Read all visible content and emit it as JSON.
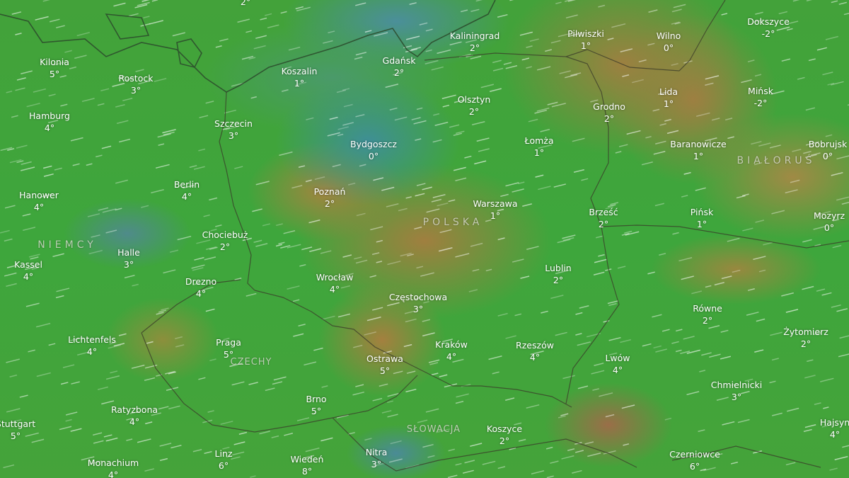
{
  "map": {
    "type": "weather-temperature-wind",
    "colors": {
      "cold": "#3f8f96",
      "mild": "#3fa83a",
      "warm": "#a3843f"
    }
  },
  "edge_temps": [
    "2°"
  ],
  "countries": [
    "NIEMCY",
    "POLSKA",
    "CZECHY",
    "SŁOWACJA",
    "BIAŁORUŚ"
  ],
  "cities": [
    {
      "name": "Kilonia",
      "temp": "5°"
    },
    {
      "name": "Rostock",
      "temp": "3°"
    },
    {
      "name": "Hamburg",
      "temp": "4°"
    },
    {
      "name": "Koszalin",
      "temp": "1°"
    },
    {
      "name": "Gdańsk",
      "temp": "2°"
    },
    {
      "name": "Kaliningrad",
      "temp": "2°"
    },
    {
      "name": "Pilwiszki",
      "temp": "1°"
    },
    {
      "name": "Wilno",
      "temp": "0°"
    },
    {
      "name": "Dokszyce",
      "temp": "-2°"
    },
    {
      "name": "Szczecin",
      "temp": "3°"
    },
    {
      "name": "Olsztyn",
      "temp": "2°"
    },
    {
      "name": "Grodno",
      "temp": "2°"
    },
    {
      "name": "Lida",
      "temp": "1°"
    },
    {
      "name": "Mińsk",
      "temp": "-2°"
    },
    {
      "name": "Bydgoszcz",
      "temp": "0°"
    },
    {
      "name": "Łomża",
      "temp": "1°"
    },
    {
      "name": "Baranowicze",
      "temp": "1°"
    },
    {
      "name": "Bobrujsk",
      "temp": "0°"
    },
    {
      "name": "Hanower",
      "temp": "4°"
    },
    {
      "name": "Berlin",
      "temp": "4°"
    },
    {
      "name": "Poznań",
      "temp": "2°"
    },
    {
      "name": "Warszawa",
      "temp": "1°"
    },
    {
      "name": "Brześć",
      "temp": "2°"
    },
    {
      "name": "Pińsk",
      "temp": "1°"
    },
    {
      "name": "Mozyrz",
      "temp": "0°"
    },
    {
      "name": "Chociebuż",
      "temp": "2°"
    },
    {
      "name": "Halle",
      "temp": "3°"
    },
    {
      "name": "Kassel",
      "temp": "4°"
    },
    {
      "name": "Lublin",
      "temp": "2°"
    },
    {
      "name": "Drezno",
      "temp": "4°"
    },
    {
      "name": "Wrocław",
      "temp": "4°"
    },
    {
      "name": "Częstochowa",
      "temp": "3°"
    },
    {
      "name": "Równe",
      "temp": "2°"
    },
    {
      "name": "Żytomierz",
      "temp": "2°"
    },
    {
      "name": "Lichtenfels",
      "temp": "4°"
    },
    {
      "name": "Praga",
      "temp": "5°"
    },
    {
      "name": "Kraków",
      "temp": "4°"
    },
    {
      "name": "Rzeszów",
      "temp": "4°"
    },
    {
      "name": "Lwów",
      "temp": "4°"
    },
    {
      "name": "Ostrawa",
      "temp": "5°"
    },
    {
      "name": "Chmielnicki",
      "temp": "3°"
    },
    {
      "name": "Brno",
      "temp": "5°"
    },
    {
      "name": "Ratyzbona",
      "temp": "4°"
    },
    {
      "name": "Stuttgart",
      "temp": "5°"
    },
    {
      "name": "Koszyce",
      "temp": "2°"
    },
    {
      "name": "Hajsyn",
      "temp": "4°"
    },
    {
      "name": "Linz",
      "temp": "6°"
    },
    {
      "name": "Wiedeń",
      "temp": "8°"
    },
    {
      "name": "Nitra",
      "temp": "3°"
    },
    {
      "name": "Czerniowce",
      "temp": "6°"
    },
    {
      "name": "Monachium",
      "temp": "4°"
    }
  ]
}
